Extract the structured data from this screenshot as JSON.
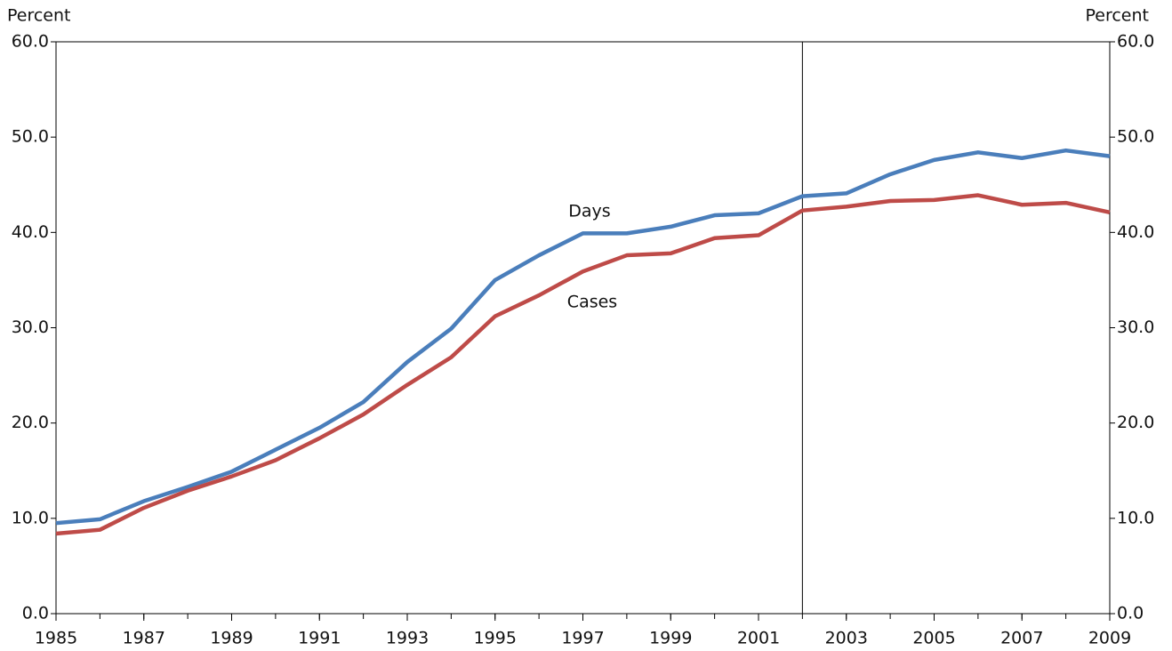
{
  "chart_data": {
    "type": "line",
    "y_axis_label": "Percent",
    "y2_axis_label": "Percent",
    "x": [
      1985,
      1986,
      1987,
      1988,
      1989,
      1990,
      1991,
      1992,
      1993,
      1994,
      1995,
      1996,
      1997,
      1998,
      1999,
      2000,
      2001,
      2002,
      2003,
      2004,
      2005,
      2006,
      2007,
      2008,
      2009
    ],
    "series": [
      {
        "name": "Days",
        "color": "#4a7ebb",
        "values": [
          9.5,
          9.9,
          11.8,
          13.3,
          14.9,
          17.2,
          19.5,
          22.2,
          26.4,
          29.9,
          35.0,
          37.6,
          39.9,
          39.9,
          40.6,
          41.8,
          42.0,
          43.8,
          44.1,
          46.1,
          47.6,
          48.4,
          47.8,
          48.6,
          48.0
        ]
      },
      {
        "name": "Cases",
        "color": "#be4b48",
        "values": [
          8.4,
          8.8,
          11.1,
          12.9,
          14.4,
          16.1,
          18.4,
          20.9,
          24.0,
          26.9,
          31.2,
          33.4,
          35.9,
          37.6,
          37.8,
          39.4,
          39.7,
          42.3,
          42.7,
          43.3,
          43.4,
          43.9,
          42.9,
          43.1,
          42.1
        ]
      }
    ],
    "xlim": [
      1985,
      2009
    ],
    "xticks": [
      1985,
      1987,
      1989,
      1991,
      1993,
      1995,
      1997,
      1999,
      2001,
      2003,
      2005,
      2007,
      2009
    ],
    "ylim": [
      0,
      60
    ],
    "yticks": [
      {
        "value": 0,
        "label": "0.0"
      },
      {
        "value": 10,
        "label": "10.0"
      },
      {
        "value": 20,
        "label": "20.0"
      },
      {
        "value": 30,
        "label": "30.0"
      },
      {
        "value": 40,
        "label": "40.0"
      },
      {
        "value": 50,
        "label": "50.0"
      },
      {
        "value": 60,
        "label": "60.0"
      }
    ],
    "y2lim": [
      0,
      60
    ],
    "y2ticks": [
      {
        "value": 0,
        "label": "0.0"
      },
      {
        "value": 10,
        "label": "10.0"
      },
      {
        "value": 20,
        "label": "20.0"
      },
      {
        "value": 30,
        "label": "30.0"
      },
      {
        "value": 40,
        "label": "40.0"
      },
      {
        "value": 50,
        "label": "50.0"
      },
      {
        "value": 60,
        "label": "60.0"
      }
    ],
    "vline_x": 2002,
    "grid": false
  }
}
